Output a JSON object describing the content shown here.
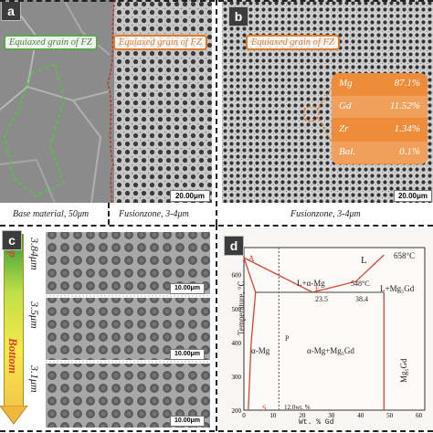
{
  "panel_a": {
    "letter": "a",
    "callout_left": "Equiaxed grain of FZ",
    "callout_right": "Equiaxed grain of FZ",
    "scale": "20.00μm",
    "caption_left": "Base material, 50μm",
    "caption_right": "Fusionzone, 3-4μm"
  },
  "panel_b": {
    "letter": "b",
    "callout": "Equiaxed grain of FZ",
    "composition": [
      {
        "element": "Mg",
        "value": "87.1%"
      },
      {
        "element": "Gd",
        "value": "11.52%"
      },
      {
        "element": "Zr",
        "value": "1.34%"
      },
      {
        "element": "Bal.",
        "value": "0.1%"
      }
    ],
    "scale": "20.00μm",
    "caption": "Fusionzone, 3-4μm"
  },
  "panel_c": {
    "letter": "c",
    "top_label": "Top",
    "bottom_label": "Bottom",
    "rows": [
      {
        "size": "3.84μm",
        "scale": "10.00μm"
      },
      {
        "size": "3.5μm",
        "scale": "10.00μm"
      },
      {
        "size": "3.1μm",
        "scale": "10.00μm"
      }
    ]
  },
  "panel_d": {
    "letter": "d",
    "ylabel": "Temperature, °C",
    "xlabel": "Wt. % Gd",
    "yticks": [
      "200",
      "300",
      "400",
      "500",
      "600"
    ],
    "xticks": [
      "0",
      "10",
      "20",
      "30",
      "40",
      "50",
      "60"
    ],
    "labels": {
      "A": "A",
      "L": "L",
      "L_aMg": "L+α-Mg",
      "L_Mg5Gd": "L+Mg₅Gd",
      "t548": "548°C",
      "t658": "658°C",
      "v235": "23.5",
      "v384": "38.4",
      "E": "E",
      "P": "P",
      "S": "S",
      "aMg": "α-Mg",
      "aMg_Mg5Gd": "α-Mg+Mg₅Gd",
      "Mg5Gd": "Mg₅Gd",
      "wt12": "12.0wt. %"
    }
  },
  "chart_data": {
    "type": "line",
    "title": "",
    "xlabel": "Wt. % Gd",
    "ylabel": "Temperature, °C",
    "xlim": [
      0,
      62
    ],
    "ylim": [
      200,
      680
    ],
    "series": [
      {
        "x": [
          0,
          23.5
        ],
        "y": [
          650,
          548
        ]
      },
      {
        "x": [
          23.5,
          38.4,
          48.0
        ],
        "y": [
          548,
          580,
          658
        ]
      },
      {
        "x": [
          0,
          4.0
        ],
        "y": [
          650,
          548
        ]
      },
      {
        "x": [
          4.0,
          2.5,
          1.5
        ],
        "y": [
          548,
          400,
          200
        ]
      },
      {
        "x": [
          4.0,
          48.0
        ],
        "y": [
          548,
          548
        ]
      },
      {
        "x": [
          48.0,
          48.0
        ],
        "y": [
          548,
          200
        ]
      },
      {
        "x": [
          12.0,
          12.0
        ],
        "y": [
          680,
          200
        ]
      }
    ]
  }
}
